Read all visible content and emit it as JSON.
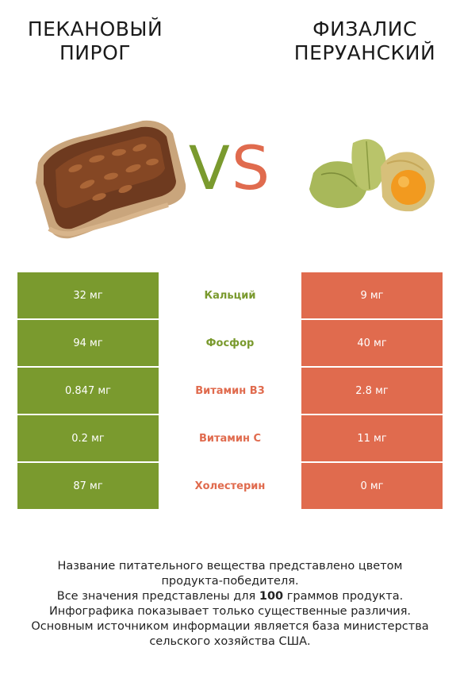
{
  "titles": {
    "left": [
      "ПЕКАНОВЫЙ",
      "ПИРОГ"
    ],
    "right": [
      "ФИЗАЛИС",
      "ПЕРУАНСКИЙ"
    ]
  },
  "vs": {
    "v": "V",
    "s": "S"
  },
  "colors": {
    "left_accent": "#7a9a2e",
    "right_accent": "#e06b4e"
  },
  "rows": [
    {
      "left": "32 мг",
      "label": "Кальций",
      "right": "9 мг",
      "winner": "left"
    },
    {
      "left": "94 мг",
      "label": "Фосфор",
      "right": "40 мг",
      "winner": "left"
    },
    {
      "left": "0.847 мг",
      "label": "Витамин B3",
      "right": "2.8 мг",
      "winner": "right"
    },
    {
      "left": "0.2 мг",
      "label": "Витамин C",
      "right": "11 мг",
      "winner": "right"
    },
    {
      "left": "87 мг",
      "label": "Холестерин",
      "right": "0 мг",
      "winner": "right"
    }
  ],
  "footer": {
    "line1": "Название питательного вещества представлено цветом",
    "line2": "продукта-победителя.",
    "line3_pre": "Все значения представлены для ",
    "line3_bold": "100",
    "line3_post": " граммов продукта.",
    "line4": "Инфографика показывает только существенные различия.",
    "line5": "Основным источником информации является база министерства",
    "line6": "сельского хозяйства США."
  }
}
